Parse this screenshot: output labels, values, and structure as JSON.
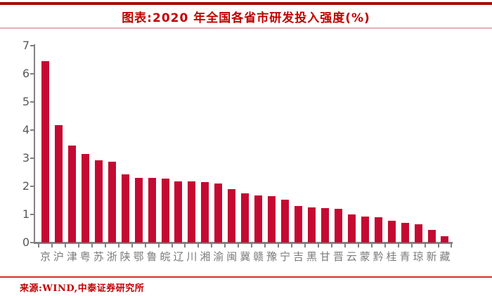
{
  "header": {
    "title": "图表:2020 年全国各省市研发投入强度(%)"
  },
  "footer": {
    "source": "来源:WIND,中泰证券研究所"
  },
  "colors": {
    "bar_red": "#C40A32",
    "title_red": "#C00000",
    "top_rule_red": "#A90505",
    "title_divider_pink": "#E9AFB4",
    "bottom_rule_red": "#DF2D22",
    "source_red": "#C00000",
    "axis_gray": "#828282",
    "y_label_gray": "#595959",
    "x_label_gray": "#7B7B7B"
  },
  "chart_data": {
    "type": "bar",
    "title": "2020 年全国各省市研发投入强度(%)",
    "xlabel": "",
    "ylabel": "",
    "ylim": [
      0,
      7
    ],
    "yticks": [
      0,
      1,
      2,
      3,
      4,
      5,
      6,
      7
    ],
    "grid": false,
    "legend": null,
    "bar_color": "#C40A32",
    "categories": [
      "京",
      "沪",
      "津",
      "粤",
      "苏",
      "浙",
      "陕",
      "鄂",
      "鲁",
      "皖",
      "辽",
      "川",
      "湘",
      "渝",
      "闽",
      "冀",
      "赣",
      "豫",
      "宁",
      "吉",
      "黑",
      "甘",
      "晋",
      "云",
      "蒙",
      "黔",
      "桂",
      "青",
      "琼",
      "新",
      "藏"
    ],
    "values": [
      6.44,
      4.17,
      3.44,
      3.14,
      2.93,
      2.88,
      2.42,
      2.31,
      2.3,
      2.28,
      2.18,
      2.17,
      2.15,
      2.11,
      1.89,
      1.75,
      1.68,
      1.64,
      1.52,
      1.3,
      1.26,
      1.23,
      1.2,
      1.0,
      0.93,
      0.91,
      0.78,
      0.71,
      0.65,
      0.44,
      0.22
    ]
  }
}
